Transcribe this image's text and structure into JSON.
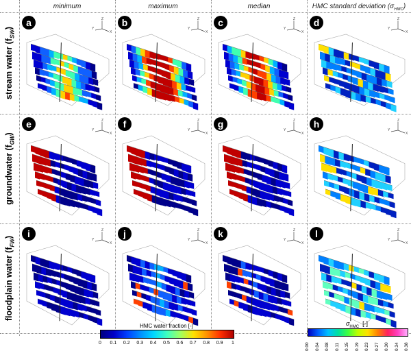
{
  "columns": [
    "minimum",
    "maximum",
    "median",
    "HMC standard deviation (σ"
  ],
  "col4_sub": "HMC",
  "col4_close": ")",
  "rows": [
    {
      "label": "stream water (f",
      "sub": "SW",
      "close": ")"
    },
    {
      "label": "groundwater (f",
      "sub": "GW",
      "close": ")"
    },
    {
      "label": "floodplain water (f",
      "sub": "FW",
      "close": ")"
    }
  ],
  "panel_letters": [
    "a",
    "b",
    "c",
    "d",
    "e",
    "f",
    "g",
    "h",
    "i",
    "j",
    "k",
    "l"
  ],
  "axes_labels": {
    "x": "X",
    "y": "Y",
    "z": "Z"
  },
  "colorbar_left": {
    "title": "HMC water fraction [-]",
    "ticks": [
      "0",
      "0.1",
      "0.2",
      "0.3",
      "0.4",
      "0.5",
      "0.6",
      "0.7",
      "0.8",
      "0.9",
      "1"
    ],
    "colors": [
      "#00007f",
      "#0000c8",
      "#0040ff",
      "#0090ff",
      "#00d8ff",
      "#40ffbf",
      "#a0ff60",
      "#ffe000",
      "#ff9000",
      "#ff3000",
      "#b00000"
    ]
  },
  "colorbar_right": {
    "title": "σ",
    "title_sub": "HMC",
    "title_unit": "[-]",
    "ticks": [
      "0.00",
      "0.04",
      "0.08",
      "0.11",
      "0.15",
      "0.19",
      "0.23",
      "0.27",
      "0.30",
      "0.34",
      "0.38"
    ],
    "colors": [
      "#0000c0",
      "#0060ff",
      "#00c0ff",
      "#00e0a0",
      "#40ff40",
      "#c0ff00",
      "#ffe000",
      "#ff8000",
      "#ff2060",
      "#ff40c0",
      "#ffb0ff"
    ]
  }
}
